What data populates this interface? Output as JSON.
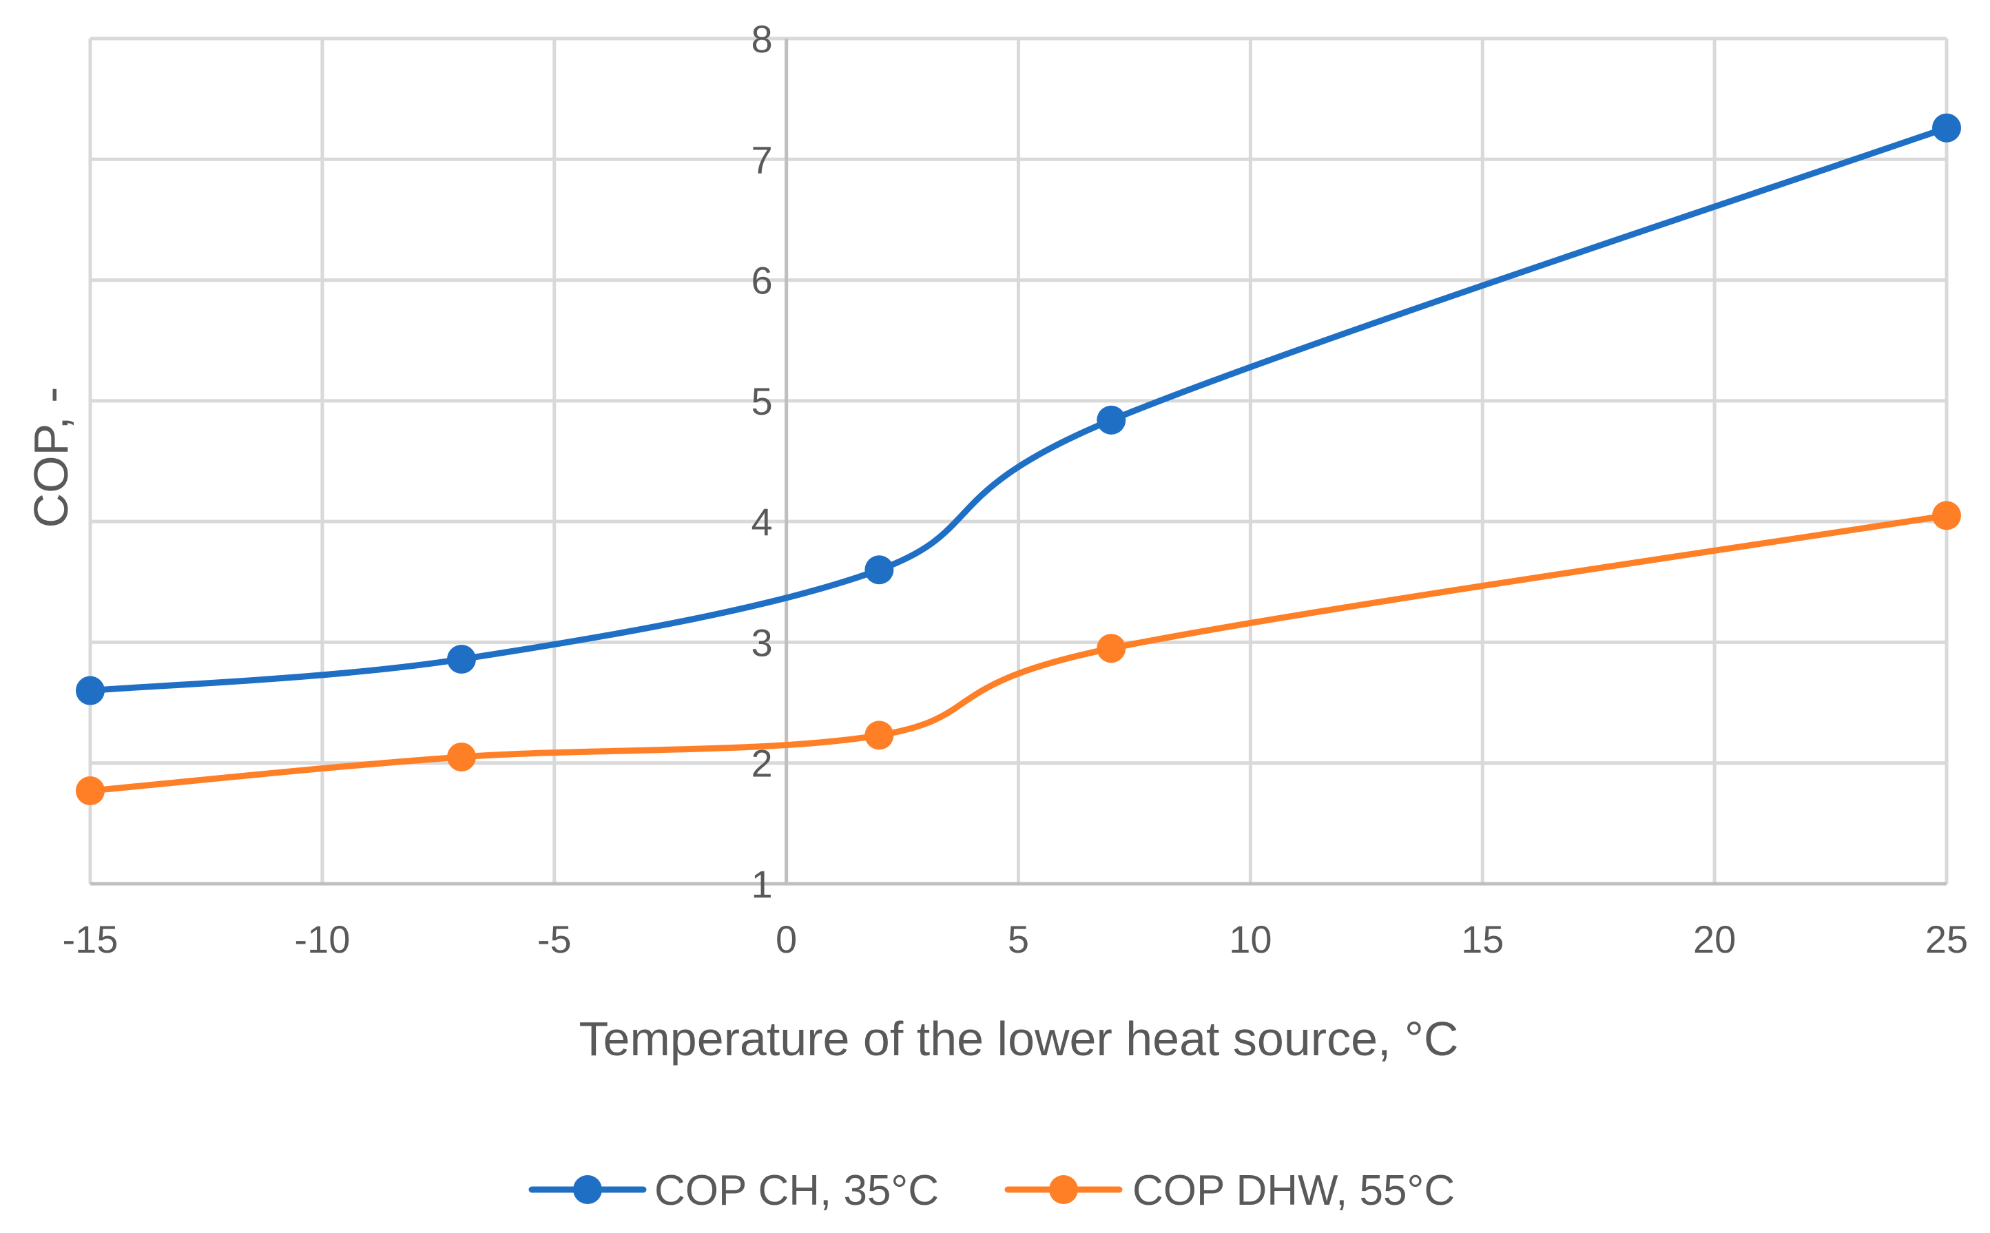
{
  "chart_data": {
    "type": "line",
    "title": "",
    "xlabel": "Temperature of the lower heat source, °C",
    "ylabel": "COP, -",
    "xlim": [
      -15,
      25
    ],
    "ylim": [
      1,
      8
    ],
    "x_ticks": [
      "-15",
      "-10",
      "-5",
      "0",
      "5",
      "10",
      "15",
      "20",
      "25"
    ],
    "y_ticks": [
      "1",
      "2",
      "3",
      "4",
      "5",
      "6",
      "7",
      "8"
    ],
    "grid": true,
    "legend_position": "bottom",
    "series": [
      {
        "name": "COP CH, 35°C",
        "color": "#1F6FC5",
        "x": [
          -15,
          -7,
          2,
          7,
          25
        ],
        "y": [
          2.6,
          2.86,
          3.6,
          4.84,
          7.26
        ]
      },
      {
        "name": "COP DHW, 55°C",
        "color": "#FF7F27",
        "x": [
          -15,
          -7,
          2,
          7,
          25
        ],
        "y": [
          1.77,
          2.05,
          2.23,
          2.95,
          4.05
        ]
      }
    ]
  }
}
